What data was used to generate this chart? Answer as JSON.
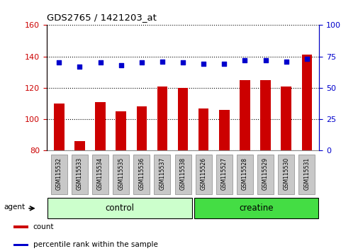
{
  "title": "GDS2765 / 1421203_at",
  "categories": [
    "GSM115532",
    "GSM115533",
    "GSM115534",
    "GSM115535",
    "GSM115536",
    "GSM115537",
    "GSM115538",
    "GSM115526",
    "GSM115527",
    "GSM115528",
    "GSM115529",
    "GSM115530",
    "GSM115531"
  ],
  "bar_values": [
    110,
    86,
    111,
    105,
    108,
    121,
    120,
    107,
    106,
    125,
    125,
    121,
    141
  ],
  "percentile_values": [
    70,
    67,
    70,
    68,
    70,
    71,
    70,
    69,
    69,
    72,
    72,
    71,
    73
  ],
  "bar_bottom": 80,
  "ylim_left": [
    80,
    160
  ],
  "ylim_right": [
    0,
    100
  ],
  "yticks_left": [
    80,
    100,
    120,
    140,
    160
  ],
  "yticks_right": [
    0,
    25,
    50,
    75,
    100
  ],
  "bar_color": "#cc0000",
  "dot_color": "#0000cc",
  "group_labels": [
    "control",
    "creatine"
  ],
  "group_col_ranges": [
    [
      0,
      6
    ],
    [
      7,
      12
    ]
  ],
  "group_colors": [
    "#ccffcc",
    "#44dd44"
  ],
  "agent_label": "agent",
  "legend_items": [
    {
      "label": "count",
      "color": "#cc0000"
    },
    {
      "label": "percentile rank within the sample",
      "color": "#0000cc"
    }
  ],
  "left_tick_color": "#cc0000",
  "right_tick_color": "#0000cc",
  "background_color": "#ffffff",
  "tick_label_bg": "#c8c8c8",
  "tick_label_bg_edge": "#888888",
  "grid_color": "#000000",
  "bar_width": 0.5,
  "dot_size": 22
}
